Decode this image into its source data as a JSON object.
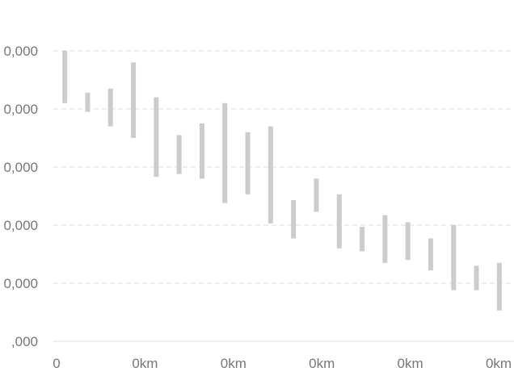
{
  "chart_data": {
    "type": "bar",
    "subtype": "floating-range",
    "grid": true,
    "legend": "none",
    "bar_color": "#cccccc",
    "grid_color": "#e8e8e8",
    "y_tick_labels": [
      ",000",
      "0,000",
      "0,000",
      "0,000",
      "0,000",
      "0,000"
    ],
    "x_tick_labels": [
      "0",
      "0km",
      "0km",
      "0km",
      "0km",
      "0km"
    ],
    "ylim": [
      0,
      5
    ],
    "xlim": [
      0,
      20
    ],
    "series": [
      {
        "ranges": [
          {
            "x": 0.5,
            "low": 4.1,
            "high": 5.0
          },
          {
            "x": 1.5,
            "low": 3.95,
            "high": 4.28
          },
          {
            "x": 2.5,
            "low": 3.7,
            "high": 4.35
          },
          {
            "x": 3.5,
            "low": 3.5,
            "high": 4.8
          },
          {
            "x": 4.5,
            "low": 2.83,
            "high": 4.2
          },
          {
            "x": 5.5,
            "low": 2.88,
            "high": 3.55
          },
          {
            "x": 6.5,
            "low": 2.8,
            "high": 3.75
          },
          {
            "x": 7.5,
            "low": 2.38,
            "high": 4.1
          },
          {
            "x": 8.5,
            "low": 2.53,
            "high": 3.6
          },
          {
            "x": 9.5,
            "low": 2.03,
            "high": 3.7
          },
          {
            "x": 10.5,
            "low": 1.77,
            "high": 2.43
          },
          {
            "x": 11.5,
            "low": 2.23,
            "high": 2.8
          },
          {
            "x": 12.5,
            "low": 1.6,
            "high": 2.53
          },
          {
            "x": 13.5,
            "low": 1.55,
            "high": 1.97
          },
          {
            "x": 14.5,
            "low": 1.35,
            "high": 2.17
          },
          {
            "x": 15.5,
            "low": 1.4,
            "high": 2.05
          },
          {
            "x": 16.5,
            "low": 1.22,
            "high": 1.77
          },
          {
            "x": 17.5,
            "low": 0.88,
            "high": 2.0
          },
          {
            "x": 18.5,
            "low": 0.88,
            "high": 1.3
          },
          {
            "x": 19.5,
            "low": 0.53,
            "high": 1.35
          }
        ]
      }
    ]
  }
}
